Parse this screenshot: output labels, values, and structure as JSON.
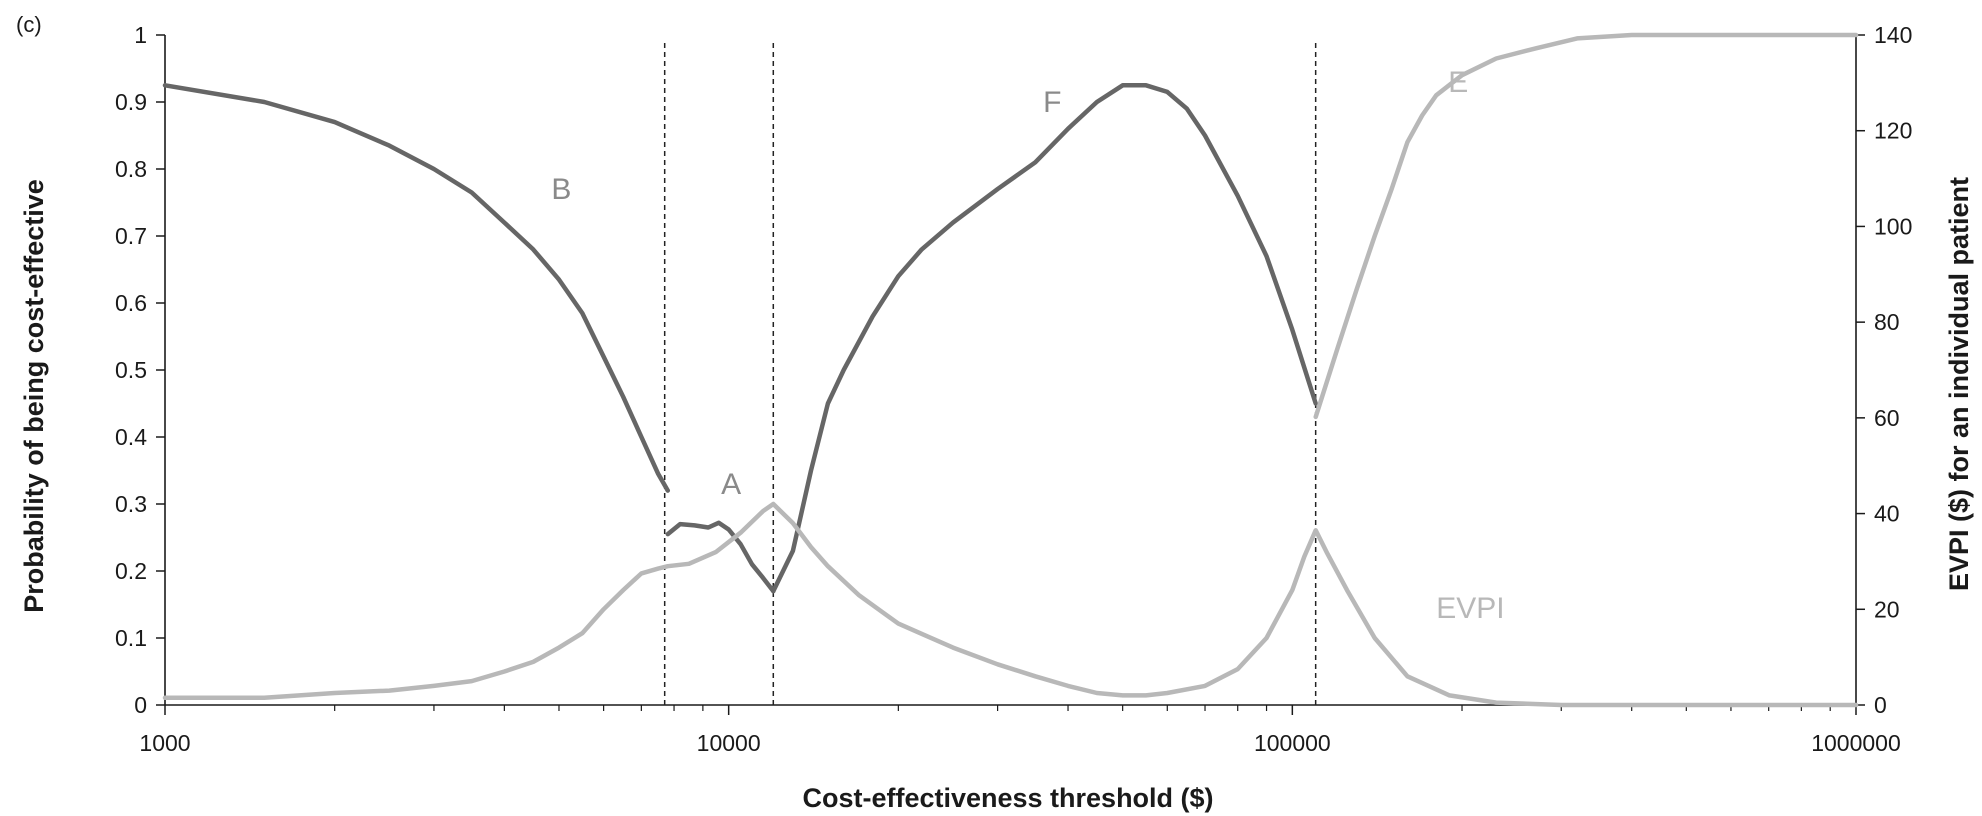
{
  "chart_data": {
    "type": "line",
    "panel_label": "(c)",
    "xlabel": "Cost-effectiveness threshold ($)",
    "ylabel": "Probability of being cost-effective",
    "ylabel_right": "EVPI ($) for an individual patient",
    "x_scale": "log",
    "xlim": [
      1000,
      1000000
    ],
    "ylim": [
      0,
      1
    ],
    "ylim_right": [
      0,
      140
    ],
    "x_ticks": [
      "1000",
      "10000",
      "100000",
      "1000000"
    ],
    "y_ticks": [
      "0",
      "0.1",
      "0.2",
      "0.3",
      "0.4",
      "0.5",
      "0.6",
      "0.7",
      "0.8",
      "0.9",
      "1"
    ],
    "y_ticks_right": [
      "0",
      "20",
      "40",
      "60",
      "80",
      "100",
      "120",
      "140"
    ],
    "grid": false,
    "vertical_reference_lines": [
      7700,
      12000,
      110000
    ],
    "colors": {
      "dark_series": "#666666",
      "light_series": "#b8b8b8",
      "axis": "#1a1a1a"
    },
    "series": [
      {
        "name": "B",
        "axis": "left",
        "color": "#666666",
        "x": [
          1000,
          1500,
          2000,
          2500,
          3000,
          3500,
          4000,
          4500,
          5000,
          5500,
          6000,
          6500,
          7000,
          7500,
          7800
        ],
        "y": [
          0.925,
          0.9,
          0.87,
          0.835,
          0.8,
          0.765,
          0.72,
          0.68,
          0.635,
          0.585,
          0.52,
          0.46,
          0.4,
          0.345,
          0.32
        ]
      },
      {
        "name": "A",
        "axis": "left",
        "color": "#666666",
        "x": [
          7800,
          8200,
          8700,
          9200,
          9600,
          10000,
          10500,
          11000,
          11500,
          12000
        ],
        "y": [
          0.255,
          0.27,
          0.268,
          0.265,
          0.272,
          0.262,
          0.24,
          0.21,
          0.19,
          0.17
        ]
      },
      {
        "name": "F",
        "axis": "left",
        "color": "#666666",
        "x": [
          12000,
          13000,
          14000,
          15000,
          16000,
          18000,
          20000,
          22000,
          25000,
          30000,
          35000,
          40000,
          45000,
          50000,
          55000,
          60000,
          65000,
          70000,
          80000,
          90000,
          100000,
          110000
        ],
        "y": [
          0.17,
          0.23,
          0.35,
          0.45,
          0.5,
          0.58,
          0.64,
          0.68,
          0.72,
          0.77,
          0.81,
          0.86,
          0.9,
          0.925,
          0.925,
          0.915,
          0.89,
          0.85,
          0.76,
          0.67,
          0.56,
          0.45
        ]
      },
      {
        "name": "E",
        "axis": "left",
        "color": "#b8b8b8",
        "x": [
          110000,
          120000,
          130000,
          140000,
          150000,
          160000,
          170000,
          180000,
          200000,
          230000,
          270000,
          320000,
          400000,
          600000,
          1000000
        ],
        "y": [
          0.43,
          0.53,
          0.62,
          0.7,
          0.77,
          0.84,
          0.88,
          0.91,
          0.94,
          0.965,
          0.98,
          0.995,
          1,
          1,
          1
        ]
      },
      {
        "name": "EVPI",
        "axis": "right",
        "color": "#b8b8b8",
        "x": [
          1000,
          1500,
          2000,
          2500,
          3000,
          3500,
          4000,
          4500,
          5000,
          5500,
          6000,
          6500,
          7000,
          7500,
          7800,
          8500,
          9500,
          10500,
          11500,
          12000,
          13000,
          14000,
          15000,
          17000,
          20000,
          25000,
          30000,
          35000,
          40000,
          45000,
          50000,
          55000,
          60000,
          70000,
          80000,
          90000,
          100000,
          105000,
          110000,
          115000,
          125000,
          140000,
          160000,
          190000,
          230000,
          300000,
          500000,
          1000000
        ],
        "y": [
          1.5,
          1.5,
          2.5,
          3,
          4,
          5,
          7,
          9,
          12,
          15,
          20,
          24,
          27.5,
          28.5,
          29,
          29.5,
          32,
          36,
          40.5,
          42,
          38,
          33,
          29,
          23,
          17,
          12,
          8.5,
          6,
          4,
          2.5,
          2,
          2,
          2.5,
          4,
          7.5,
          14,
          24,
          31,
          36.5,
          32,
          24,
          14,
          6,
          2,
          0.5,
          0,
          0,
          0
        ]
      }
    ],
    "annotations": [
      {
        "text": "B",
        "x": 5050,
        "y": 0.755,
        "color": "#8a8a8a"
      },
      {
        "text": "A",
        "x": 10100,
        "y": 0.315,
        "color": "#8a8a8a"
      },
      {
        "text": "F",
        "x": 37500,
        "y": 0.885,
        "color": "#8a8a8a"
      },
      {
        "text": "E",
        "x": 197000,
        "y": 0.915,
        "color": "#b8b8b8"
      },
      {
        "text": "EVPI",
        "x": 207000,
        "y": 0.13,
        "color": "#b8b8b8"
      }
    ]
  }
}
